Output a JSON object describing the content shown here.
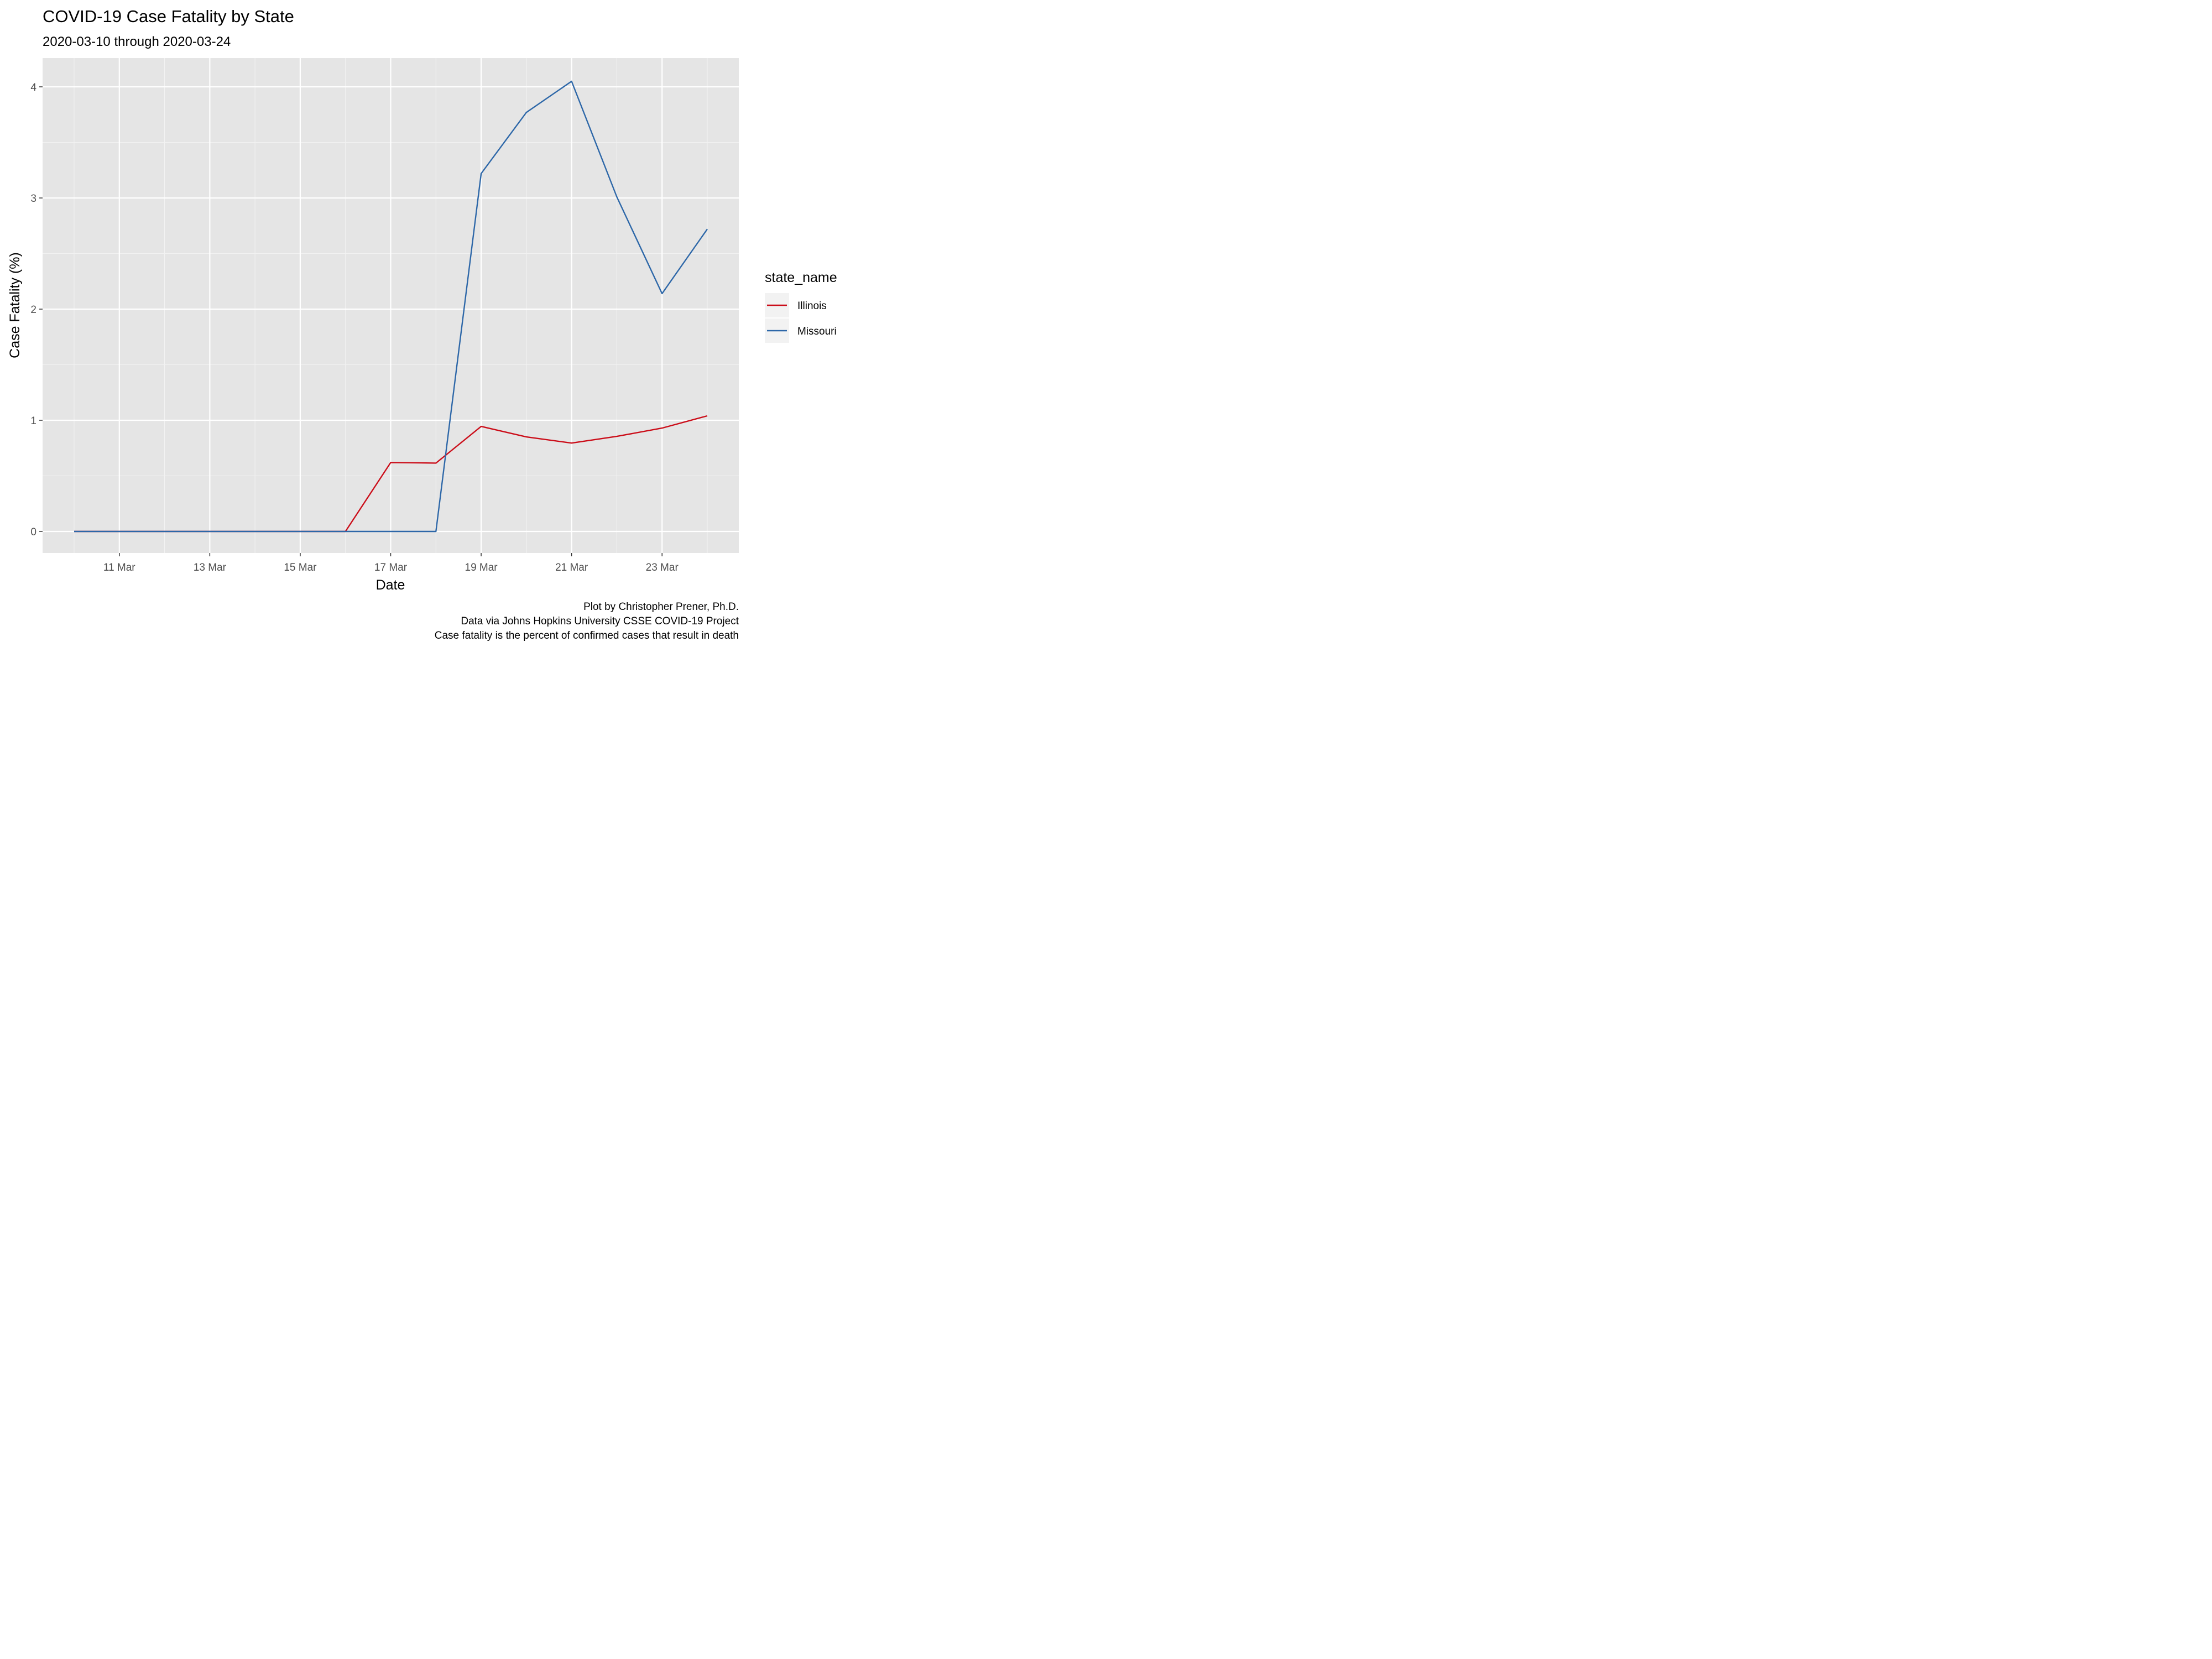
{
  "chart_data": {
    "type": "line",
    "title": "COVID-19 Case Fatality by State",
    "subtitle": "2020-03-10 through 2020-03-24",
    "xlabel": "Date",
    "ylabel": "Case Fatality (%)",
    "x": [
      "2020-03-10",
      "2020-03-11",
      "2020-03-12",
      "2020-03-13",
      "2020-03-14",
      "2020-03-15",
      "2020-03-16",
      "2020-03-17",
      "2020-03-18",
      "2020-03-19",
      "2020-03-20",
      "2020-03-21",
      "2020-03-22",
      "2020-03-23",
      "2020-03-24"
    ],
    "xticks": [
      {
        "date": "2020-03-11",
        "label": "11 Mar"
      },
      {
        "date": "2020-03-13",
        "label": "13 Mar"
      },
      {
        "date": "2020-03-15",
        "label": "15 Mar"
      },
      {
        "date": "2020-03-17",
        "label": "17 Mar"
      },
      {
        "date": "2020-03-19",
        "label": "19 Mar"
      },
      {
        "date": "2020-03-21",
        "label": "21 Mar"
      },
      {
        "date": "2020-03-23",
        "label": "23 Mar"
      }
    ],
    "yticks": [
      0,
      1,
      2,
      3,
      4
    ],
    "ylim": [
      -0.2,
      4.25
    ],
    "grid": true,
    "legend": {
      "title": "state_name",
      "placement": "right"
    },
    "series": [
      {
        "name": "Illinois",
        "color": "#cb0d19",
        "values": [
          0,
          0,
          0,
          0,
          0,
          0,
          0,
          0.62,
          0.615,
          0.945,
          0.85,
          0.795,
          0.855,
          0.93,
          1.04
        ]
      },
      {
        "name": "Missouri",
        "color": "#2d67a8",
        "values": [
          0,
          0,
          0,
          0,
          0,
          0,
          0,
          0,
          0,
          3.22,
          3.77,
          4.05,
          3.01,
          2.14,
          2.72
        ]
      }
    ],
    "caption": [
      "Plot by Christopher Prener, Ph.D.",
      "Data via Johns Hopkins University CSSE COVID-19 Project",
      "Case fatality is the percent of confirmed cases that result in death"
    ]
  }
}
